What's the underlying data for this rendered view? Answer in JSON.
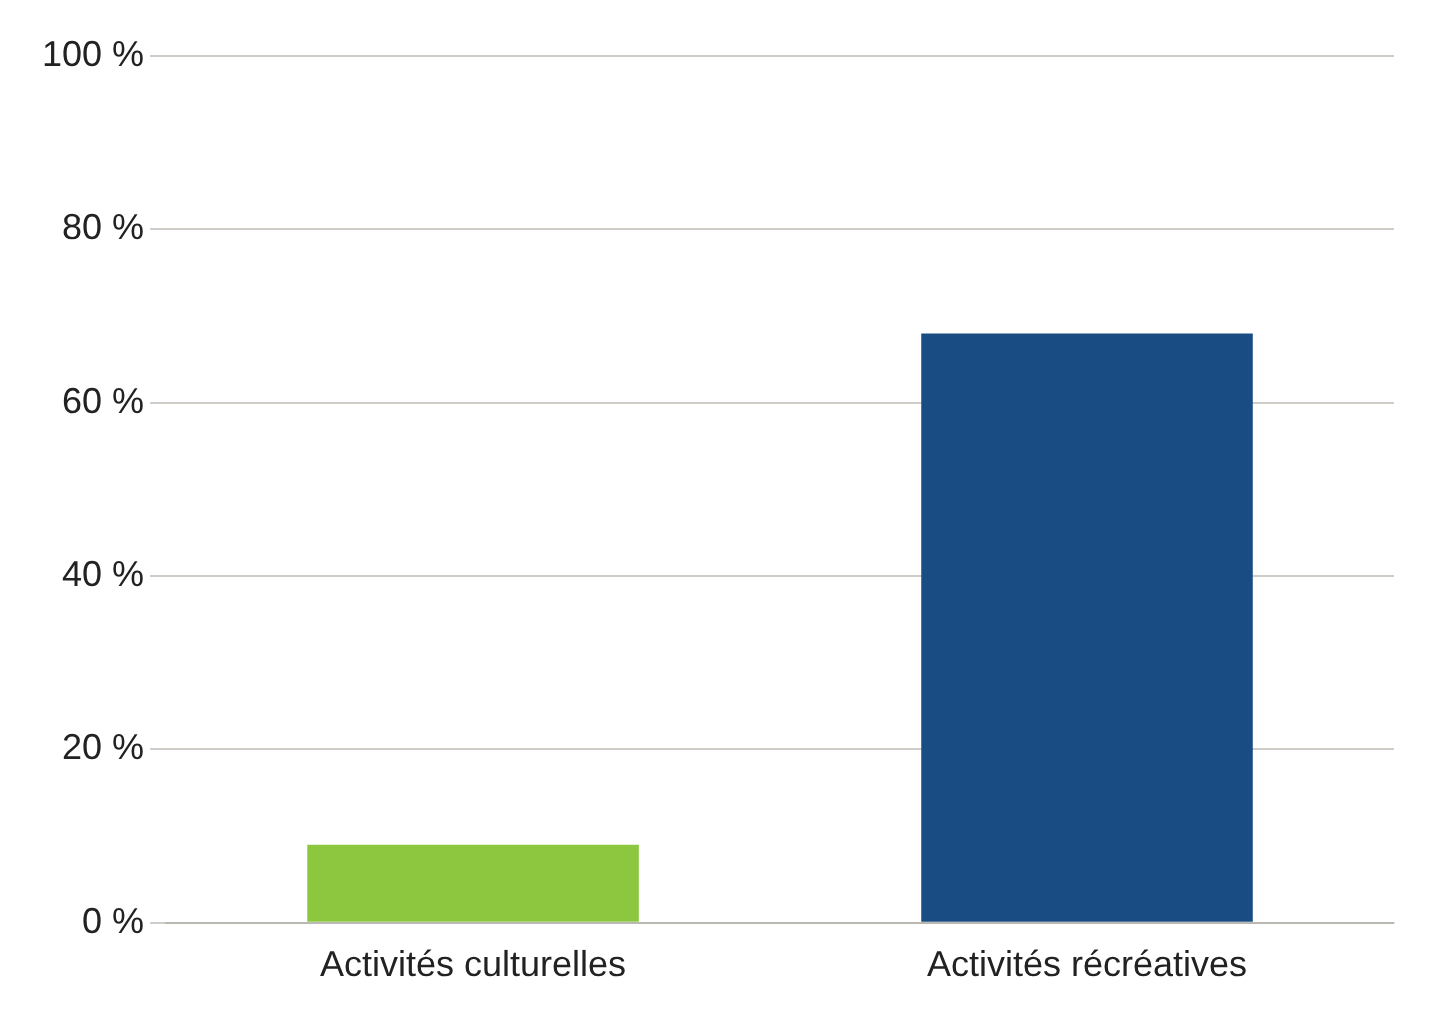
{
  "chart_data": {
    "type": "bar",
    "categories": [
      "Activités culturelles",
      "Activités récréatives"
    ],
    "values": [
      9,
      68
    ],
    "colors": [
      "#8dc63f",
      "#1a4c84"
    ],
    "ylim": [
      0,
      100
    ],
    "yticks": [
      {
        "value": 0,
        "label": "0 %"
      },
      {
        "value": 20,
        "label": "20 %"
      },
      {
        "value": 40,
        "label": "40 %"
      },
      {
        "value": 60,
        "label": "60 %"
      },
      {
        "value": 80,
        "label": "80 %"
      },
      {
        "value": 100,
        "label": "100 %"
      }
    ],
    "grid": "y",
    "legend": false
  }
}
